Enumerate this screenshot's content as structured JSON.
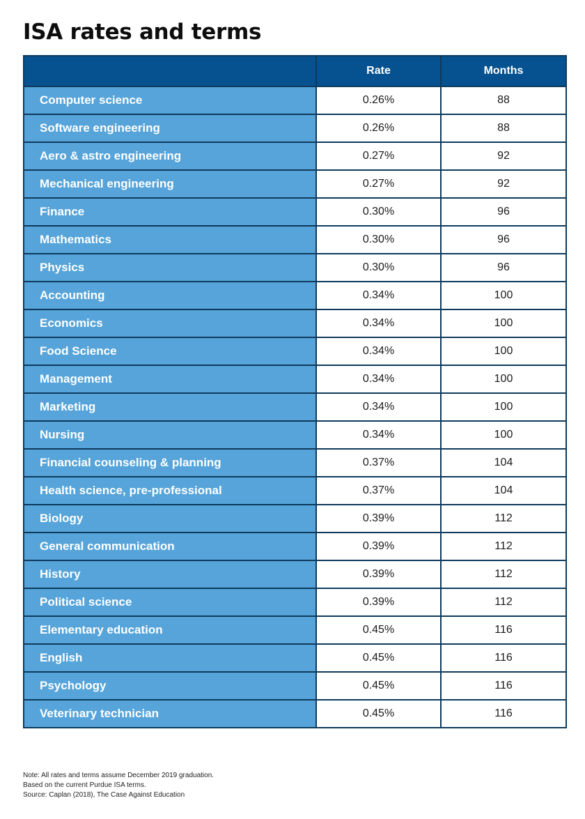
{
  "title": "ISA rates and terms",
  "colors": {
    "header_bg": "#065290",
    "major_bg": "#56a4d9",
    "border": "#0e3a5c"
  },
  "chart_data": {
    "type": "table",
    "title": "ISA rates and terms",
    "columns": [
      "",
      "Rate",
      "Months"
    ],
    "rows": [
      {
        "major": "Computer science",
        "rate": "0.26%",
        "months": "88"
      },
      {
        "major": "Software engineering",
        "rate": "0.26%",
        "months": "88"
      },
      {
        "major": "Aero & astro engineering",
        "rate": "0.27%",
        "months": "92"
      },
      {
        "major": "Mechanical engineering",
        "rate": "0.27%",
        "months": "92"
      },
      {
        "major": "Finance",
        "rate": "0.30%",
        "months": "96"
      },
      {
        "major": "Mathematics",
        "rate": "0.30%",
        "months": "96"
      },
      {
        "major": "Physics",
        "rate": "0.30%",
        "months": "96"
      },
      {
        "major": "Accounting",
        "rate": "0.34%",
        "months": "100"
      },
      {
        "major": "Economics",
        "rate": "0.34%",
        "months": "100"
      },
      {
        "major": "Food Science",
        "rate": "0.34%",
        "months": "100"
      },
      {
        "major": "Management",
        "rate": "0.34%",
        "months": "100"
      },
      {
        "major": "Marketing",
        "rate": "0.34%",
        "months": "100"
      },
      {
        "major": "Nursing",
        "rate": "0.34%",
        "months": "100"
      },
      {
        "major": "Financial counseling & planning",
        "rate": "0.37%",
        "months": "104"
      },
      {
        "major": "Health science, pre-professional",
        "rate": "0.37%",
        "months": "104"
      },
      {
        "major": "Biology",
        "rate": "0.39%",
        "months": "112"
      },
      {
        "major": "General communication",
        "rate": "0.39%",
        "months": "112"
      },
      {
        "major": "History",
        "rate": "0.39%",
        "months": "112"
      },
      {
        "major": "Political science",
        "rate": "0.39%",
        "months": "112"
      },
      {
        "major": "Elementary education",
        "rate": "0.45%",
        "months": "116"
      },
      {
        "major": "English",
        "rate": "0.45%",
        "months": "116"
      },
      {
        "major": "Psychology",
        "rate": "0.45%",
        "months": "116"
      },
      {
        "major": "Veterinary technician",
        "rate": "0.45%",
        "months": "116"
      }
    ]
  },
  "notes": [
    "Note: All rates and terms assume December 2019 graduation.",
    "Based on the current Purdue ISA terms.",
    "Source: Caplan (2018), The Case Against Education"
  ]
}
